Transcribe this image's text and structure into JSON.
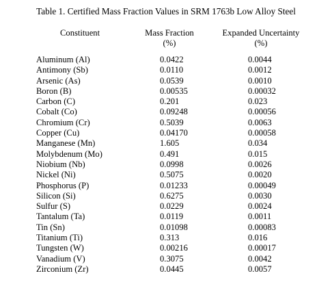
{
  "caption": "Table 1.  Certified Mass Fraction Values in SRM 1763b Low Alloy Steel",
  "headers": {
    "constituent": "Constituent",
    "mass_fraction": "Mass Fraction",
    "mass_fraction_unit": "(%)",
    "expanded_uncertainty": "Expanded Uncertainty",
    "expanded_uncertainty_unit": "(%)"
  },
  "rows": [
    {
      "constituent": "Aluminum (Al)",
      "mass_fraction": "0.0422",
      "uncertainty": "0.0044"
    },
    {
      "constituent": "Antimony (Sb)",
      "mass_fraction": "0.0110",
      "uncertainty": "0.0012"
    },
    {
      "constituent": "Arsenic (As)",
      "mass_fraction": "0.0539",
      "uncertainty": "0.0010"
    },
    {
      "constituent": "Boron (B)",
      "mass_fraction": "0.00535",
      "uncertainty": "0.00032"
    },
    {
      "constituent": "Carbon (C)",
      "mass_fraction": "0.201",
      "uncertainty": "0.023"
    },
    {
      "constituent": "Cobalt (Co)",
      "mass_fraction": "0.09248",
      "uncertainty": "0.00056"
    },
    {
      "constituent": "Chromium (Cr)",
      "mass_fraction": "0.5039",
      "uncertainty": "0.0063"
    },
    {
      "constituent": "Copper (Cu)",
      "mass_fraction": "0.04170",
      "uncertainty": "0.00058"
    },
    {
      "constituent": "Manganese (Mn)",
      "mass_fraction": "1.605",
      "uncertainty": "0.034"
    },
    {
      "constituent": "Molybdenum (Mo)",
      "mass_fraction": "0.491",
      "uncertainty": "0.015"
    },
    {
      "constituent": "Niobium (Nb)",
      "mass_fraction": "0.0998",
      "uncertainty": "0.0026"
    },
    {
      "constituent": "Nickel (Ni)",
      "mass_fraction": "0.5075",
      "uncertainty": "0.0020"
    },
    {
      "constituent": "Phosphorus (P)",
      "mass_fraction": "0.01233",
      "uncertainty": "0.00049"
    },
    {
      "constituent": "Silicon (Si)",
      "mass_fraction": "0.6275",
      "uncertainty": "0.0030"
    },
    {
      "constituent": "Sulfur (S)",
      "mass_fraction": "0.0229",
      "uncertainty": "0.0024"
    },
    {
      "constituent": "Tantalum (Ta)",
      "mass_fraction": "0.0119",
      "uncertainty": "0.0011"
    },
    {
      "constituent": "Tin (Sn)",
      "mass_fraction": "0.01098",
      "uncertainty": "0.00083"
    },
    {
      "constituent": "Titanium (Ti)",
      "mass_fraction": "0.313",
      "uncertainty": "0.016"
    },
    {
      "constituent": "Tungsten (W)",
      "mass_fraction": "0.00216",
      "uncertainty": "0.00017"
    },
    {
      "constituent": "Vanadium (V)",
      "mass_fraction": "0.3075",
      "uncertainty": "0.0042"
    },
    {
      "constituent": "Zirconium (Zr)",
      "mass_fraction": "0.0445",
      "uncertainty": "0.0057"
    }
  ]
}
